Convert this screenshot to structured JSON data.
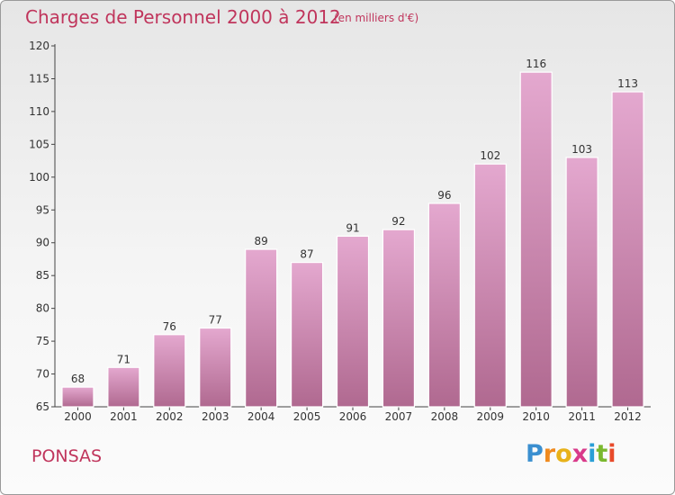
{
  "title": "Charges de Personnel 2000 à 2012",
  "subtitle": "(en milliers d'€)",
  "commune": "PONSAS",
  "logo": {
    "letters": [
      "P",
      "r",
      "o",
      "x",
      "i",
      "t",
      "i"
    ],
    "colors": [
      "#3a8fd0",
      "#f08a1e",
      "#e8b21a",
      "#d93a8a",
      "#2a9fd6",
      "#7ab82e",
      "#e84a2a"
    ]
  },
  "colors": {
    "bar_light": "#e4a8cf",
    "bar_dark": "#b06990",
    "text": "#c0355c",
    "axis": "#444444"
  },
  "chart_data": {
    "type": "bar",
    "title": "Charges de Personnel 2000 à 2012",
    "subtitle": "(en milliers d'€)",
    "categories": [
      "2000",
      "2001",
      "2002",
      "2003",
      "2004",
      "2005",
      "2006",
      "2007",
      "2008",
      "2009",
      "2010",
      "2011",
      "2012"
    ],
    "values": [
      68,
      71,
      76,
      77,
      89,
      87,
      91,
      92,
      96,
      102,
      116,
      103,
      113
    ],
    "ylim": [
      65,
      120
    ],
    "yticks": [
      65,
      70,
      75,
      80,
      85,
      90,
      95,
      100,
      105,
      110,
      115,
      120
    ],
    "grid": false,
    "legend": "none"
  }
}
